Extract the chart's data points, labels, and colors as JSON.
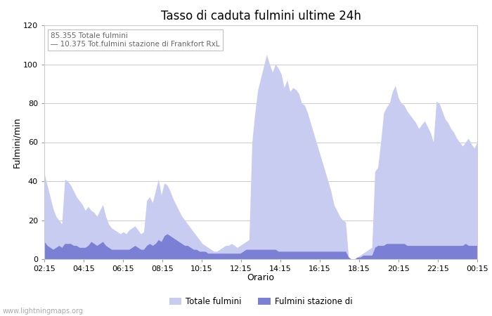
{
  "title": "Tasso di caduta fulmini ultime 24h",
  "xlabel": "Orario",
  "ylabel": "Fulmini/min",
  "ylim": [
    0,
    120
  ],
  "yticks": [
    0,
    20,
    40,
    60,
    80,
    100,
    120
  ],
  "xtick_labels": [
    "02:15",
    "04:15",
    "06:15",
    "08:15",
    "10:15",
    "12:15",
    "14:15",
    "16:15",
    "18:15",
    "20:15",
    "22:15",
    "00:15"
  ],
  "legend_label_total": "Totale fulmini",
  "legend_label_station": "Fulmini stazione di",
  "annotation_line1": "85.355 Totale fulmini",
  "annotation_line2": "10.375 Tot.fulmini stazione di Frankfort RxL",
  "watermark": "www.lightningmaps.org",
  "color_total": "#c8ccf0",
  "color_station": "#7b80d4",
  "background_color": "#ffffff",
  "grid_color": "#cccccc",
  "title_fontsize": 12,
  "label_fontsize": 9,
  "tick_fontsize": 8,
  "total_values": [
    44,
    38,
    32,
    26,
    22,
    20,
    18,
    41,
    40,
    38,
    35,
    32,
    30,
    28,
    25,
    27,
    25,
    24,
    22,
    25,
    28,
    22,
    18,
    16,
    15,
    14,
    13,
    14,
    13,
    15,
    16,
    17,
    15,
    13,
    14,
    30,
    32,
    29,
    35,
    41,
    33,
    39,
    38,
    35,
    31,
    28,
    25,
    22,
    20,
    18,
    16,
    14,
    12,
    10,
    8,
    7,
    6,
    5,
    4,
    4,
    5,
    6,
    7,
    7,
    8,
    7,
    6,
    7,
    8,
    9,
    10,
    60,
    75,
    87,
    93,
    99,
    105,
    100,
    96,
    100,
    98,
    95,
    88,
    92,
    86,
    88,
    87,
    85,
    80,
    79,
    75,
    70,
    65,
    60,
    55,
    50,
    45,
    40,
    35,
    28,
    25,
    22,
    20,
    19,
    1,
    0,
    0,
    1,
    2,
    3,
    4,
    5,
    6,
    45,
    47,
    60,
    75,
    78,
    80,
    86,
    89,
    83,
    80,
    79,
    76,
    74,
    72,
    70,
    67,
    69,
    71,
    68,
    65,
    60,
    81,
    80,
    76,
    72,
    70,
    67,
    65,
    62,
    60,
    58,
    60,
    62,
    59,
    57,
    60
  ],
  "station_values": [
    9,
    7,
    6,
    5,
    6,
    7,
    6,
    8,
    8,
    8,
    7,
    7,
    6,
    6,
    6,
    7,
    9,
    8,
    7,
    8,
    9,
    7,
    6,
    5,
    5,
    5,
    5,
    5,
    5,
    5,
    6,
    7,
    6,
    5,
    5,
    7,
    8,
    7,
    8,
    10,
    9,
    12,
    13,
    12,
    11,
    10,
    9,
    8,
    7,
    7,
    6,
    5,
    5,
    4,
    4,
    4,
    3,
    3,
    3,
    3,
    3,
    3,
    3,
    3,
    3,
    3,
    3,
    3,
    4,
    5,
    5,
    5,
    5,
    5,
    5,
    5,
    5,
    5,
    5,
    5,
    4,
    4,
    4,
    4,
    4,
    4,
    4,
    4,
    4,
    4,
    4,
    4,
    4,
    4,
    4,
    4,
    4,
    4,
    4,
    4,
    4,
    4,
    4,
    4,
    1,
    0,
    0,
    1,
    1,
    2,
    2,
    2,
    2,
    6,
    7,
    7,
    7,
    8,
    8,
    8,
    8,
    8,
    8,
    8,
    7,
    7,
    7,
    7,
    7,
    7,
    7,
    7,
    7,
    7,
    7,
    7,
    7,
    7,
    7,
    7,
    7,
    7,
    7,
    7,
    8,
    7,
    7,
    7,
    7
  ]
}
